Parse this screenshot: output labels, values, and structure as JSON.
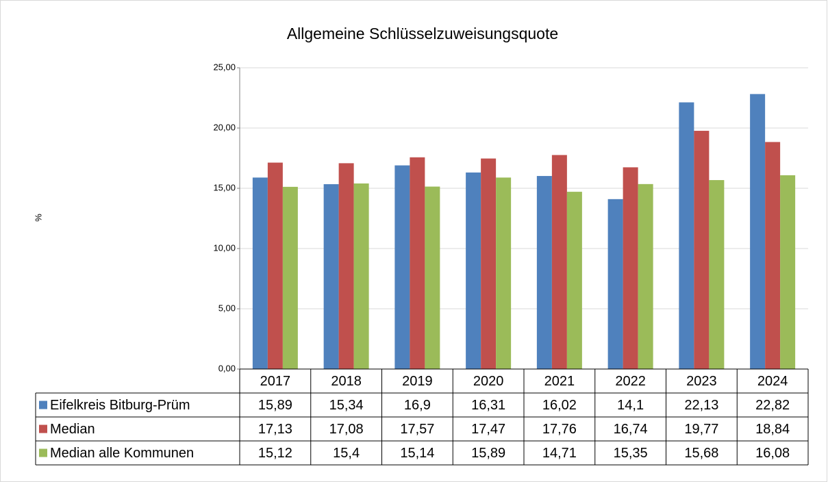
{
  "chart_data": {
    "type": "bar",
    "title": "Allgemeine Schlüsselzuweisungsquote",
    "y_label": "%",
    "categories": [
      "2017",
      "2018",
      "2019",
      "2020",
      "2021",
      "2022",
      "2023",
      "2024"
    ],
    "series": [
      {
        "name": "Eifelkreis Bitburg-Prüm",
        "color": "#4f81bd",
        "values": [
          15.89,
          15.34,
          16.9,
          16.31,
          16.02,
          14.1,
          22.13,
          22.82
        ],
        "value_labels": [
          "15,89",
          "15,34",
          "16,9",
          "16,31",
          "16,02",
          "14,1",
          "22,13",
          "22,82"
        ]
      },
      {
        "name": "Median",
        "color": "#c0504d",
        "values": [
          17.13,
          17.08,
          17.57,
          17.47,
          17.76,
          16.74,
          19.77,
          18.84
        ],
        "value_labels": [
          "17,13",
          "17,08",
          "17,57",
          "17,47",
          "17,76",
          "16,74",
          "19,77",
          "18,84"
        ]
      },
      {
        "name": "Median alle Kommunen",
        "color": "#9bbb59",
        "values": [
          15.12,
          15.4,
          15.14,
          15.89,
          14.71,
          15.35,
          15.68,
          16.08
        ],
        "value_labels": [
          "15,12",
          "15,4",
          "15,14",
          "15,89",
          "14,71",
          "15,35",
          "15,68",
          "16,08"
        ]
      }
    ],
    "ylim": [
      0,
      25
    ],
    "yticks": [
      {
        "value": 0,
        "label": "0,00"
      },
      {
        "value": 5,
        "label": "5,00"
      },
      {
        "value": 10,
        "label": "10,00"
      },
      {
        "value": 15,
        "label": "15,00"
      },
      {
        "value": 20,
        "label": "20,00"
      },
      {
        "value": 25,
        "label": "25,00"
      }
    ],
    "grid": true
  }
}
